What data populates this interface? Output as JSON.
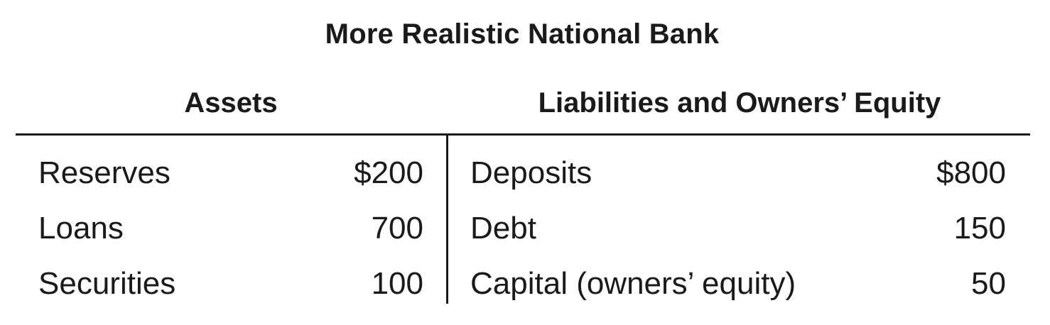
{
  "title": "More Realistic National Bank",
  "columns": {
    "assets": "Assets",
    "liabilities": "Liabilities and Owners’ Equity"
  },
  "rows": [
    {
      "asset_label": "Reserves",
      "asset_value": "$200",
      "liability_label": "Deposits",
      "liability_value": "$800"
    },
    {
      "asset_label": "Loans",
      "asset_value": "700",
      "liability_label": "Debt",
      "liability_value": "150"
    },
    {
      "asset_label": "Securities",
      "asset_value": "100",
      "liability_label": "Capital (owners’ equity)",
      "liability_value": "50"
    }
  ]
}
